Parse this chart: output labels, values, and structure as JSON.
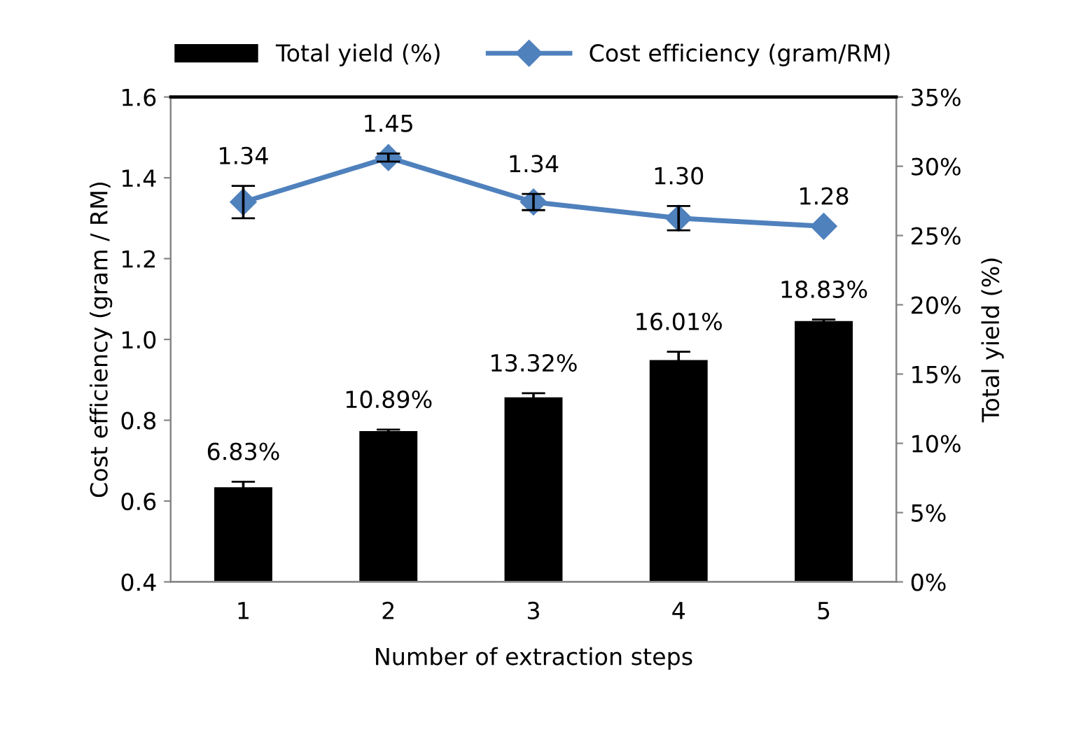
{
  "chart_data": {
    "type": "bar",
    "xlabel": "Number of extraction steps",
    "ylabel": "Cost efficiency (gram / RM)",
    "y2label": "Total yield (%)",
    "categories": [
      "1",
      "2",
      "3",
      "4",
      "5"
    ],
    "series": [
      {
        "name": "Total yield (%)",
        "axis": "y2",
        "color": "#000000",
        "values": [
          6.83,
          10.89,
          13.32,
          16.01,
          18.83
        ],
        "errors": [
          0.4,
          0.1,
          0.3,
          0.6,
          0.1
        ],
        "value_labels": [
          "6.83%",
          "10.89%",
          "13.32%",
          "16.01%",
          "18.83%"
        ]
      },
      {
        "name": "Cost efficiency (gram/RM)",
        "type": "line",
        "color": "#4f81bd",
        "marker": "diamond",
        "values": [
          1.34,
          1.45,
          1.34,
          1.3,
          1.28
        ],
        "errors": [
          0.04,
          0.01,
          0.02,
          0.03,
          null
        ],
        "value_labels": [
          "1.34",
          "1.45",
          "1.34",
          "1.30",
          "1.28"
        ]
      }
    ],
    "ylim": [
      0.4,
      1.6
    ],
    "yticks": [
      {
        "value": 0.4,
        "label": "0.4"
      },
      {
        "value": 0.6,
        "label": "0.6"
      },
      {
        "value": 0.8,
        "label": "0.8"
      },
      {
        "value": 1.0,
        "label": "1.0"
      },
      {
        "value": 1.2,
        "label": "1.2"
      },
      {
        "value": 1.4,
        "label": "1.4"
      },
      {
        "value": 1.6,
        "label": "1.6"
      }
    ],
    "y2lim": [
      0,
      35
    ],
    "y2ticks": [
      {
        "value": 0,
        "label": "0%"
      },
      {
        "value": 5,
        "label": "5%"
      },
      {
        "value": 10,
        "label": "10%"
      },
      {
        "value": 15,
        "label": "15%"
      },
      {
        "value": 20,
        "label": "20%"
      },
      {
        "value": 25,
        "label": "25%"
      },
      {
        "value": 30,
        "label": "30%"
      },
      {
        "value": 35,
        "label": "35%"
      }
    ],
    "legend": "top",
    "grid": false
  }
}
